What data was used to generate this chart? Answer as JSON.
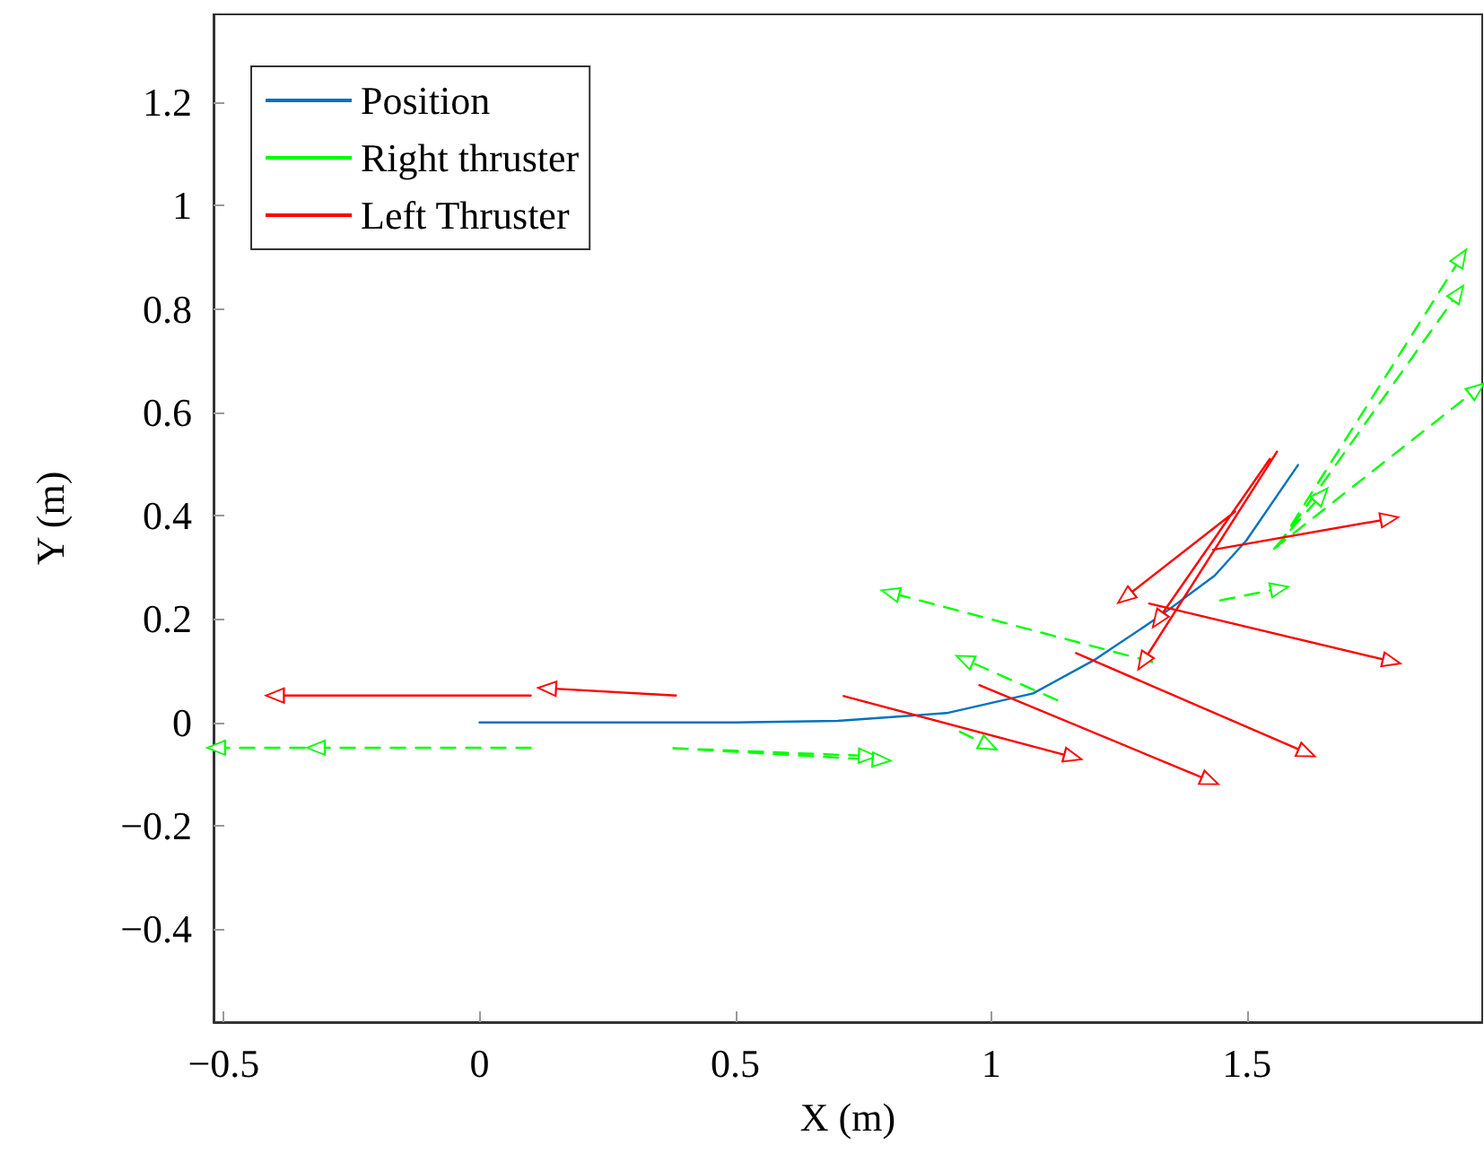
{
  "chart_data": {
    "type": "line",
    "xlabel": "X (m)",
    "ylabel": "Y (m)",
    "xlim": [
      -0.52,
      1.96
    ],
    "ylim": [
      -0.58,
      1.37
    ],
    "xticks": [
      {
        "value": -0.5,
        "label": "−0.5"
      },
      0,
      0.5,
      1,
      1.5
    ],
    "yticks": [
      {
        "value": -0.4,
        "label": "−0.4"
      },
      {
        "value": -0.2,
        "label": "−0.2"
      },
      0,
      0.2,
      0.4,
      0.6,
      0.8,
      1,
      1.2
    ],
    "grid": false,
    "legend": "top left",
    "series": [
      {
        "name": "Position",
        "color": "#0072bd",
        "line_style": "solid",
        "marker": "none",
        "x": [
          0,
          0.5,
          0.7,
          0.913,
          1.082,
          1.204,
          1.332,
          1.437,
          1.499,
          1.6
        ],
        "values": [
          0,
          0,
          0.003,
          0.018,
          0.056,
          0.122,
          0.207,
          0.284,
          0.352,
          0.498
        ]
      },
      {
        "name": "Right thruster",
        "color": "#00ff00",
        "line_style": "dashed",
        "marker": "triangle",
        "x": [
          0.1,
          -0.32,
          null,
          0.1,
          -0.515,
          null,
          0.379,
          0.759,
          null,
          0.379,
          0.786,
          null,
          0.939,
          0.995,
          null,
          1.129,
          0.948,
          null,
          1.315,
          0.803,
          null,
          1.448,
          1.564,
          null,
          1.56,
          1.919,
          null,
          1.56,
          1.913,
          null,
          1.553,
          1.95,
          null,
          1.553,
          1.646
        ],
        "values": [
          -0.049,
          -0.049,
          null,
          -0.049,
          -0.049,
          null,
          -0.05,
          -0.065,
          null,
          -0.05,
          -0.073,
          null,
          -0.018,
          -0.045,
          null,
          0.043,
          0.122,
          null,
          0.117,
          0.251,
          null,
          0.236,
          0.259,
          null,
          0.34,
          0.9,
          null,
          0.34,
          0.831,
          null,
          0.336,
          0.645,
          null,
          0.336,
          0.44
        ]
      },
      {
        "name": "Left Thruster",
        "color": "#ff0000",
        "line_style": "solid",
        "marker": "triangle",
        "x": [
          0.1,
          -0.4,
          null,
          0.384,
          0.132,
          null,
          0.712,
          1.16,
          null,
          0.977,
          1.428,
          null,
          1.166,
          1.617,
          null,
          1.309,
          1.783,
          null,
          1.434,
          1.779,
          null,
          1.559,
          1.297,
          null,
          1.545,
          1.326,
          null,
          1.477,
          1.262
        ],
        "values": [
          0.052,
          0.052,
          null,
          0.052,
          0.066,
          null,
          0.051,
          -0.067,
          null,
          0.072,
          -0.113,
          null,
          0.134,
          -0.059,
          null,
          0.23,
          0.118,
          null,
          0.334,
          0.394,
          null,
          0.524,
          0.117,
          null,
          0.51,
          0.198,
          null,
          0.408,
          0.242
        ]
      }
    ]
  }
}
